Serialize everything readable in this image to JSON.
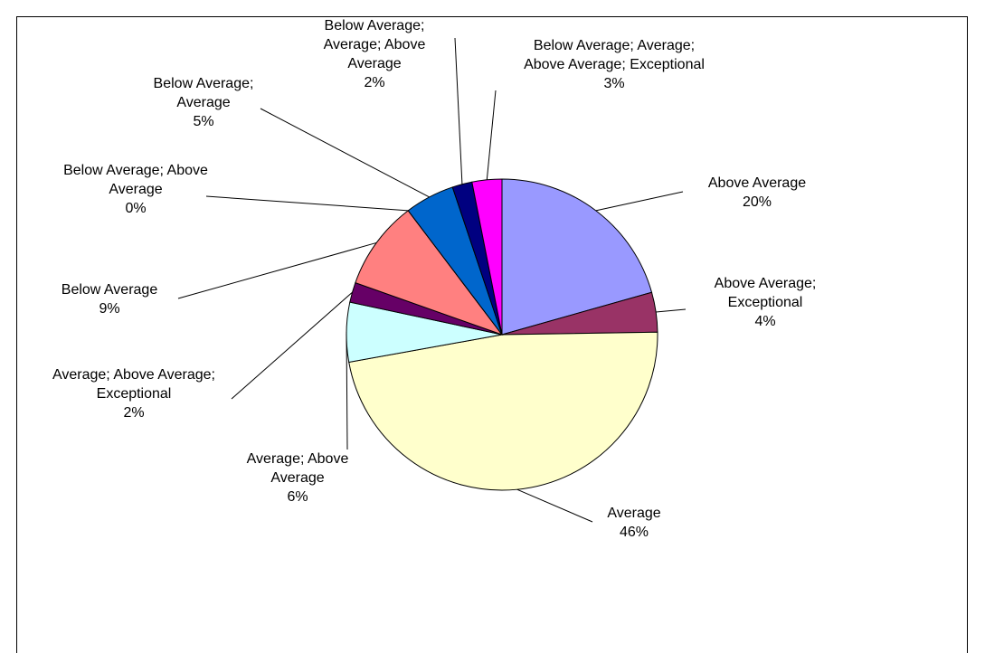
{
  "chart_data": {
    "type": "pie",
    "categories": [
      "Above Average",
      "Above Average; Exceptional",
      "Average",
      "Average; Above Average",
      "Average; Above Average; Exceptional",
      "Below Average",
      "Below Average; Above Average",
      "Below Average; Average",
      "Below Average; Average; Above Average",
      "Below Average; Average; Above Average; Exceptional"
    ],
    "values": [
      20,
      4,
      46,
      6,
      2,
      9,
      0,
      5,
      2,
      3
    ],
    "value_labels": [
      "20%",
      "4%",
      "46%",
      "6%",
      "2%",
      "9%",
      "0%",
      "5%",
      "2%",
      "3%"
    ],
    "colors": [
      "#9999ff",
      "#993366",
      "#ffffcc",
      "#ccffff",
      "#660066",
      "#ff8080",
      "#ccccff",
      "#0066cc",
      "#000080",
      "#ff00ff"
    ]
  }
}
